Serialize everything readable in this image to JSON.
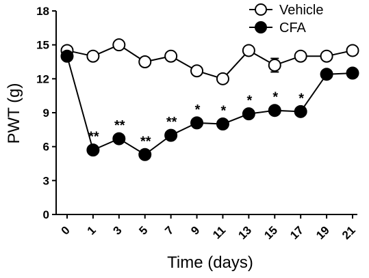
{
  "chart_data": {
    "type": "line",
    "xlabel": "Time (days)",
    "ylabel": "PWT (g)",
    "x": [
      0,
      1,
      3,
      5,
      7,
      9,
      11,
      13,
      15,
      17,
      19,
      21
    ],
    "x_tick_labels": [
      "0",
      "1",
      "3",
      "5",
      "7",
      "9",
      "11",
      "13",
      "15",
      "17",
      "19",
      "21"
    ],
    "ylim": [
      0,
      18
    ],
    "y_ticks": [
      0,
      3,
      6,
      9,
      12,
      15,
      18
    ],
    "y_tick_labels": [
      "0",
      "3",
      "6",
      "9",
      "12",
      "15",
      "18"
    ],
    "legend_position": "top-right",
    "series": [
      {
        "name": "Vehicle",
        "marker": "open-circle",
        "values": [
          14.5,
          14.0,
          15.0,
          13.5,
          14.0,
          12.7,
          12.0,
          14.5,
          13.2,
          14.0,
          14.0,
          14.5
        ],
        "error": [
          0,
          0,
          0,
          0,
          0,
          0,
          0,
          0,
          0.6,
          0,
          0,
          0
        ]
      },
      {
        "name": "CFA",
        "marker": "filled-circle",
        "values": [
          14.0,
          5.7,
          6.7,
          5.3,
          7.0,
          8.1,
          8.0,
          8.9,
          9.2,
          9.1,
          12.4,
          12.5
        ],
        "significance": [
          "",
          "**",
          "**",
          "**",
          "**",
          "*",
          "*",
          "*",
          "*",
          "*",
          "",
          ""
        ]
      }
    ]
  }
}
